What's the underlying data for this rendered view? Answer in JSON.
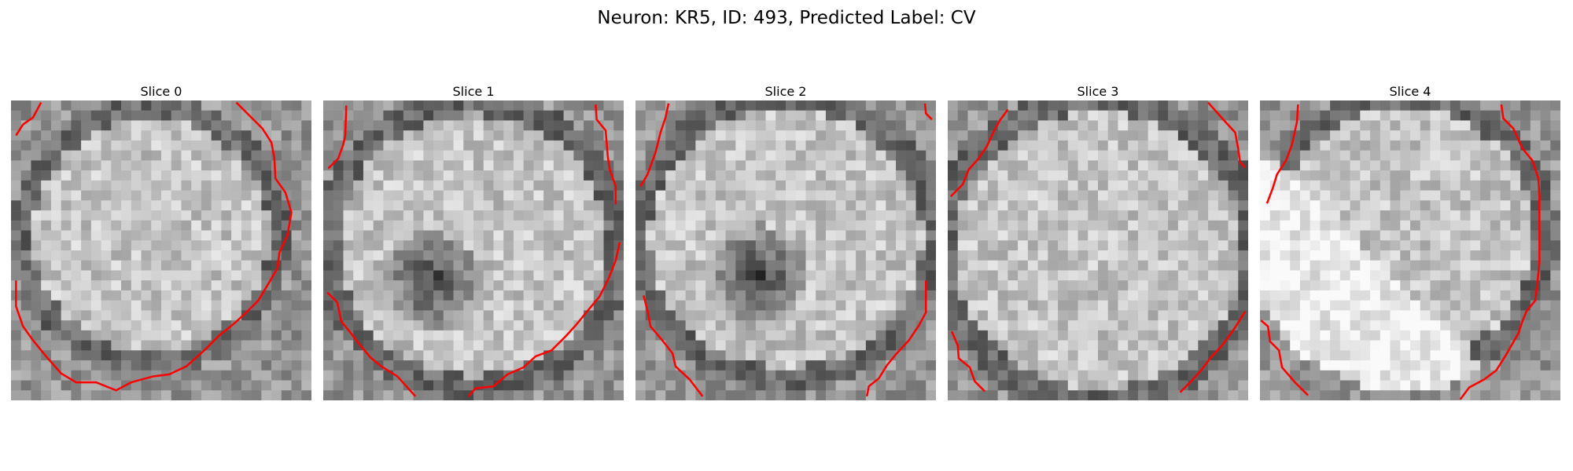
{
  "figure": {
    "title": "Neuron: KR5, ID: 493, Predicted Label: CV"
  },
  "panels": [
    {
      "title": "Slice 0"
    },
    {
      "title": "Slice 1"
    },
    {
      "title": "Slice 2"
    },
    {
      "title": "Slice 3"
    },
    {
      "title": "Slice 4"
    }
  ],
  "colors": {
    "background": "#ffffff",
    "contour": "#ff0000",
    "image_colormap": "grayscale"
  }
}
